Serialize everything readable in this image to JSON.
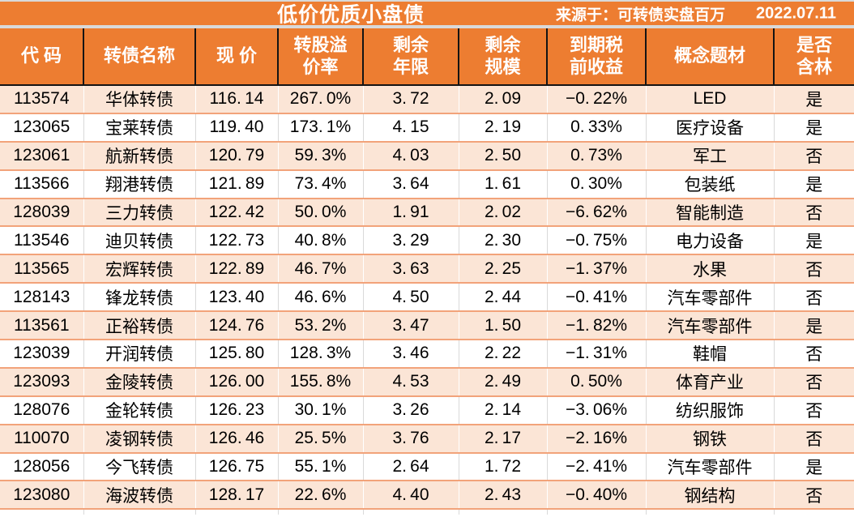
{
  "title_bar": {
    "title": "低价优质小盘债",
    "source_label": "来源于：可转债实盘百万",
    "date": "2022.07.11"
  },
  "colors": {
    "header_orange": "#ED7D31",
    "row_peach": "#FBE5D6",
    "row_divider_salmon": "#F2A37A",
    "header_grid_black": "#141414",
    "divider_gray": "#D9D9D9",
    "header_text": "#FFFFFF",
    "body_text": "#000000"
  },
  "table": {
    "columns": [
      {
        "key": "code",
        "label": "代 码",
        "lines": [
          "代 码"
        ]
      },
      {
        "key": "bond-name",
        "label": "转债名称",
        "lines": [
          "转债名称"
        ]
      },
      {
        "key": "price",
        "label": "现 价",
        "lines": [
          "现 价"
        ]
      },
      {
        "key": "premium-rate",
        "label": "转股溢价率",
        "lines": [
          "转股溢",
          "价率"
        ]
      },
      {
        "key": "remaining-years",
        "label": "剩余年限",
        "lines": [
          "剩余",
          "年限"
        ]
      },
      {
        "key": "remaining-size",
        "label": "剩余规模",
        "lines": [
          "剩余",
          "规模"
        ]
      },
      {
        "key": "pretax-yield",
        "label": "到期税前收益",
        "lines": [
          "到期税",
          "前收益"
        ]
      },
      {
        "key": "concept-theme",
        "label": "概念题材",
        "lines": [
          "概念题材"
        ]
      },
      {
        "key": "contains-lin",
        "label": "是否含林",
        "lines": [
          "是否",
          "含林"
        ]
      }
    ],
    "rows": [
      [
        "113574",
        "华体转债",
        "116.14",
        "267.0%",
        "3.72",
        "2.09",
        "−0.22%",
        "LED",
        "是"
      ],
      [
        "123065",
        "宝莱转债",
        "119.40",
        "173.1%",
        "4.15",
        "2.19",
        "0.33%",
        "医疗设备",
        "是"
      ],
      [
        "123061",
        "航新转债",
        "120.79",
        "59.3%",
        "4.03",
        "2.50",
        "0.73%",
        "军工",
        "否"
      ],
      [
        "113566",
        "翔港转债",
        "121.89",
        "73.4%",
        "3.64",
        "1.61",
        "0.30%",
        "包装纸",
        "是"
      ],
      [
        "128039",
        "三力转债",
        "122.42",
        "50.0%",
        "1.91",
        "2.02",
        "−6.62%",
        "智能制造",
        "否"
      ],
      [
        "113546",
        "迪贝转债",
        "122.73",
        "40.8%",
        "3.29",
        "2.30",
        "−0.75%",
        "电力设备",
        "是"
      ],
      [
        "113565",
        "宏辉转债",
        "122.89",
        "46.7%",
        "3.63",
        "2.25",
        "−1.37%",
        "水果",
        "否"
      ],
      [
        "128143",
        "锋龙转债",
        "123.40",
        "46.6%",
        "4.50",
        "2.44",
        "−0.41%",
        "汽车零部件",
        "否"
      ],
      [
        "113561",
        "正裕转债",
        "124.76",
        "53.2%",
        "3.47",
        "1.50",
        "−1.82%",
        "汽车零部件",
        "是"
      ],
      [
        "123039",
        "开润转债",
        "125.80",
        "128.3%",
        "3.46",
        "2.22",
        "−1.31%",
        "鞋帽",
        "否"
      ],
      [
        "123093",
        "金陵转债",
        "126.00",
        "155.8%",
        "4.53",
        "2.49",
        "0.50%",
        "体育产业",
        "否"
      ],
      [
        "128076",
        "金轮转债",
        "126.23",
        "30.1%",
        "3.26",
        "2.14",
        "−3.06%",
        "纺织服饰",
        "否"
      ],
      [
        "110070",
        "凌钢转债",
        "126.46",
        "25.5%",
        "3.76",
        "2.17",
        "−2.16%",
        "钢铁",
        "否"
      ],
      [
        "128056",
        "今飞转债",
        "126.75",
        "55.1%",
        "2.64",
        "1.72",
        "−2.41%",
        "汽车零部件",
        "是"
      ],
      [
        "123080",
        "海波转债",
        "128.17",
        "22.6%",
        "4.40",
        "2.43",
        "−0.40%",
        "钢结构",
        "否"
      ]
    ]
  },
  "chart_data": {
    "type": "table",
    "title": "低价优质小盘债",
    "source": "来源于：可转债实盘百万",
    "date": "2022.07.11",
    "columns": [
      "代码",
      "转债名称",
      "现价",
      "转股溢价率",
      "剩余年限",
      "剩余规模",
      "到期税前收益",
      "概念题材",
      "是否含林"
    ],
    "rows": [
      {
        "code": "113574",
        "name": "华体转债",
        "price": 116.14,
        "premium_pct": 267.0,
        "years": 3.72,
        "size": 2.09,
        "yield_pct": -0.22,
        "concept": "LED",
        "flag": "是"
      },
      {
        "code": "123065",
        "name": "宝莱转债",
        "price": 119.4,
        "premium_pct": 173.1,
        "years": 4.15,
        "size": 2.19,
        "yield_pct": 0.33,
        "concept": "医疗设备",
        "flag": "是"
      },
      {
        "code": "123061",
        "name": "航新转债",
        "price": 120.79,
        "premium_pct": 59.3,
        "years": 4.03,
        "size": 2.5,
        "yield_pct": 0.73,
        "concept": "军工",
        "flag": "否"
      },
      {
        "code": "113566",
        "name": "翔港转债",
        "price": 121.89,
        "premium_pct": 73.4,
        "years": 3.64,
        "size": 1.61,
        "yield_pct": 0.3,
        "concept": "包装纸",
        "flag": "是"
      },
      {
        "code": "128039",
        "name": "三力转债",
        "price": 122.42,
        "premium_pct": 50.0,
        "years": 1.91,
        "size": 2.02,
        "yield_pct": -6.62,
        "concept": "智能制造",
        "flag": "否"
      },
      {
        "code": "113546",
        "name": "迪贝转债",
        "price": 122.73,
        "premium_pct": 40.8,
        "years": 3.29,
        "size": 2.3,
        "yield_pct": -0.75,
        "concept": "电力设备",
        "flag": "是"
      },
      {
        "code": "113565",
        "name": "宏辉转债",
        "price": 122.89,
        "premium_pct": 46.7,
        "years": 3.63,
        "size": 2.25,
        "yield_pct": -1.37,
        "concept": "水果",
        "flag": "否"
      },
      {
        "code": "128143",
        "name": "锋龙转债",
        "price": 123.4,
        "premium_pct": 46.6,
        "years": 4.5,
        "size": 2.44,
        "yield_pct": -0.41,
        "concept": "汽车零部件",
        "flag": "否"
      },
      {
        "code": "113561",
        "name": "正裕转债",
        "price": 124.76,
        "premium_pct": 53.2,
        "years": 3.47,
        "size": 1.5,
        "yield_pct": -1.82,
        "concept": "汽车零部件",
        "flag": "是"
      },
      {
        "code": "123039",
        "name": "开润转债",
        "price": 125.8,
        "premium_pct": 128.3,
        "years": 3.46,
        "size": 2.22,
        "yield_pct": -1.31,
        "concept": "鞋帽",
        "flag": "否"
      },
      {
        "code": "123093",
        "name": "金陵转债",
        "price": 126.0,
        "premium_pct": 155.8,
        "years": 4.53,
        "size": 2.49,
        "yield_pct": 0.5,
        "concept": "体育产业",
        "flag": "否"
      },
      {
        "code": "128076",
        "name": "金轮转债",
        "price": 126.23,
        "premium_pct": 30.1,
        "years": 3.26,
        "size": 2.14,
        "yield_pct": -3.06,
        "concept": "纺织服饰",
        "flag": "否"
      },
      {
        "code": "110070",
        "name": "凌钢转债",
        "price": 126.46,
        "premium_pct": 25.5,
        "years": 3.76,
        "size": 2.17,
        "yield_pct": -2.16,
        "concept": "钢铁",
        "flag": "否"
      },
      {
        "code": "128056",
        "name": "今飞转债",
        "price": 126.75,
        "premium_pct": 55.1,
        "years": 2.64,
        "size": 1.72,
        "yield_pct": -2.41,
        "concept": "汽车零部件",
        "flag": "是"
      },
      {
        "code": "123080",
        "name": "海波转债",
        "price": 128.17,
        "premium_pct": 22.6,
        "years": 4.4,
        "size": 2.43,
        "yield_pct": -0.4,
        "concept": "钢结构",
        "flag": "否"
      }
    ]
  }
}
